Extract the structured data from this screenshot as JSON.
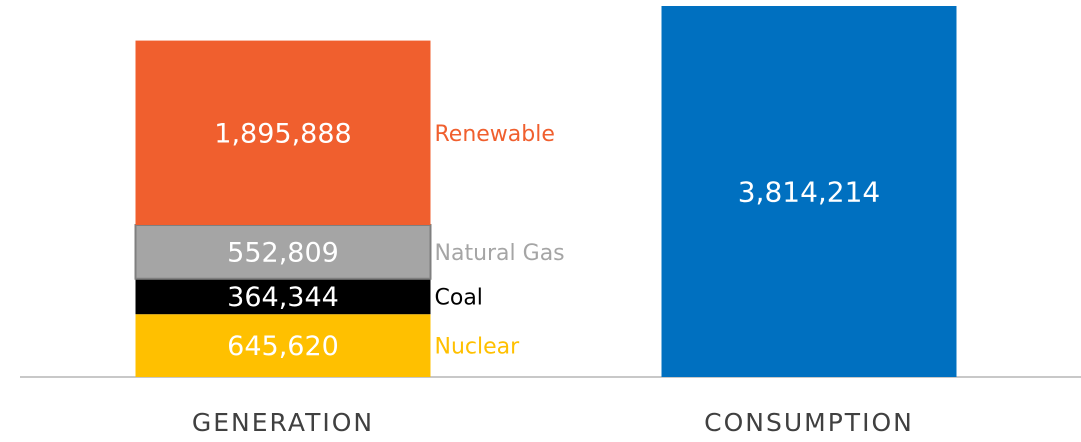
{
  "chart_data": {
    "type": "stacked_bar",
    "categories": [
      "GENERATION",
      "CONSUMPTION"
    ],
    "series": [
      {
        "name": "Nuclear",
        "color": "#ffc000",
        "values": [
          645620,
          null
        ],
        "value_labels": [
          "645,620",
          null
        ]
      },
      {
        "name": "Coal",
        "color": "#000000",
        "values": [
          364344,
          null
        ],
        "value_labels": [
          "364,344",
          null
        ]
      },
      {
        "name": "Natural Gas",
        "color": "#a5a5a5",
        "values": [
          552809,
          null
        ],
        "value_labels": [
          "552,809",
          null
        ]
      },
      {
        "name": "Renewable",
        "color": "#f05f2e",
        "values": [
          1895888,
          null
        ],
        "value_labels": [
          "1,895,888",
          null
        ]
      },
      {
        "color": "#0070c0",
        "values": [
          null,
          3814214
        ],
        "value_labels": [
          null,
          "3,814,214"
        ]
      }
    ],
    "ylim": [
      0,
      3814214
    ]
  }
}
